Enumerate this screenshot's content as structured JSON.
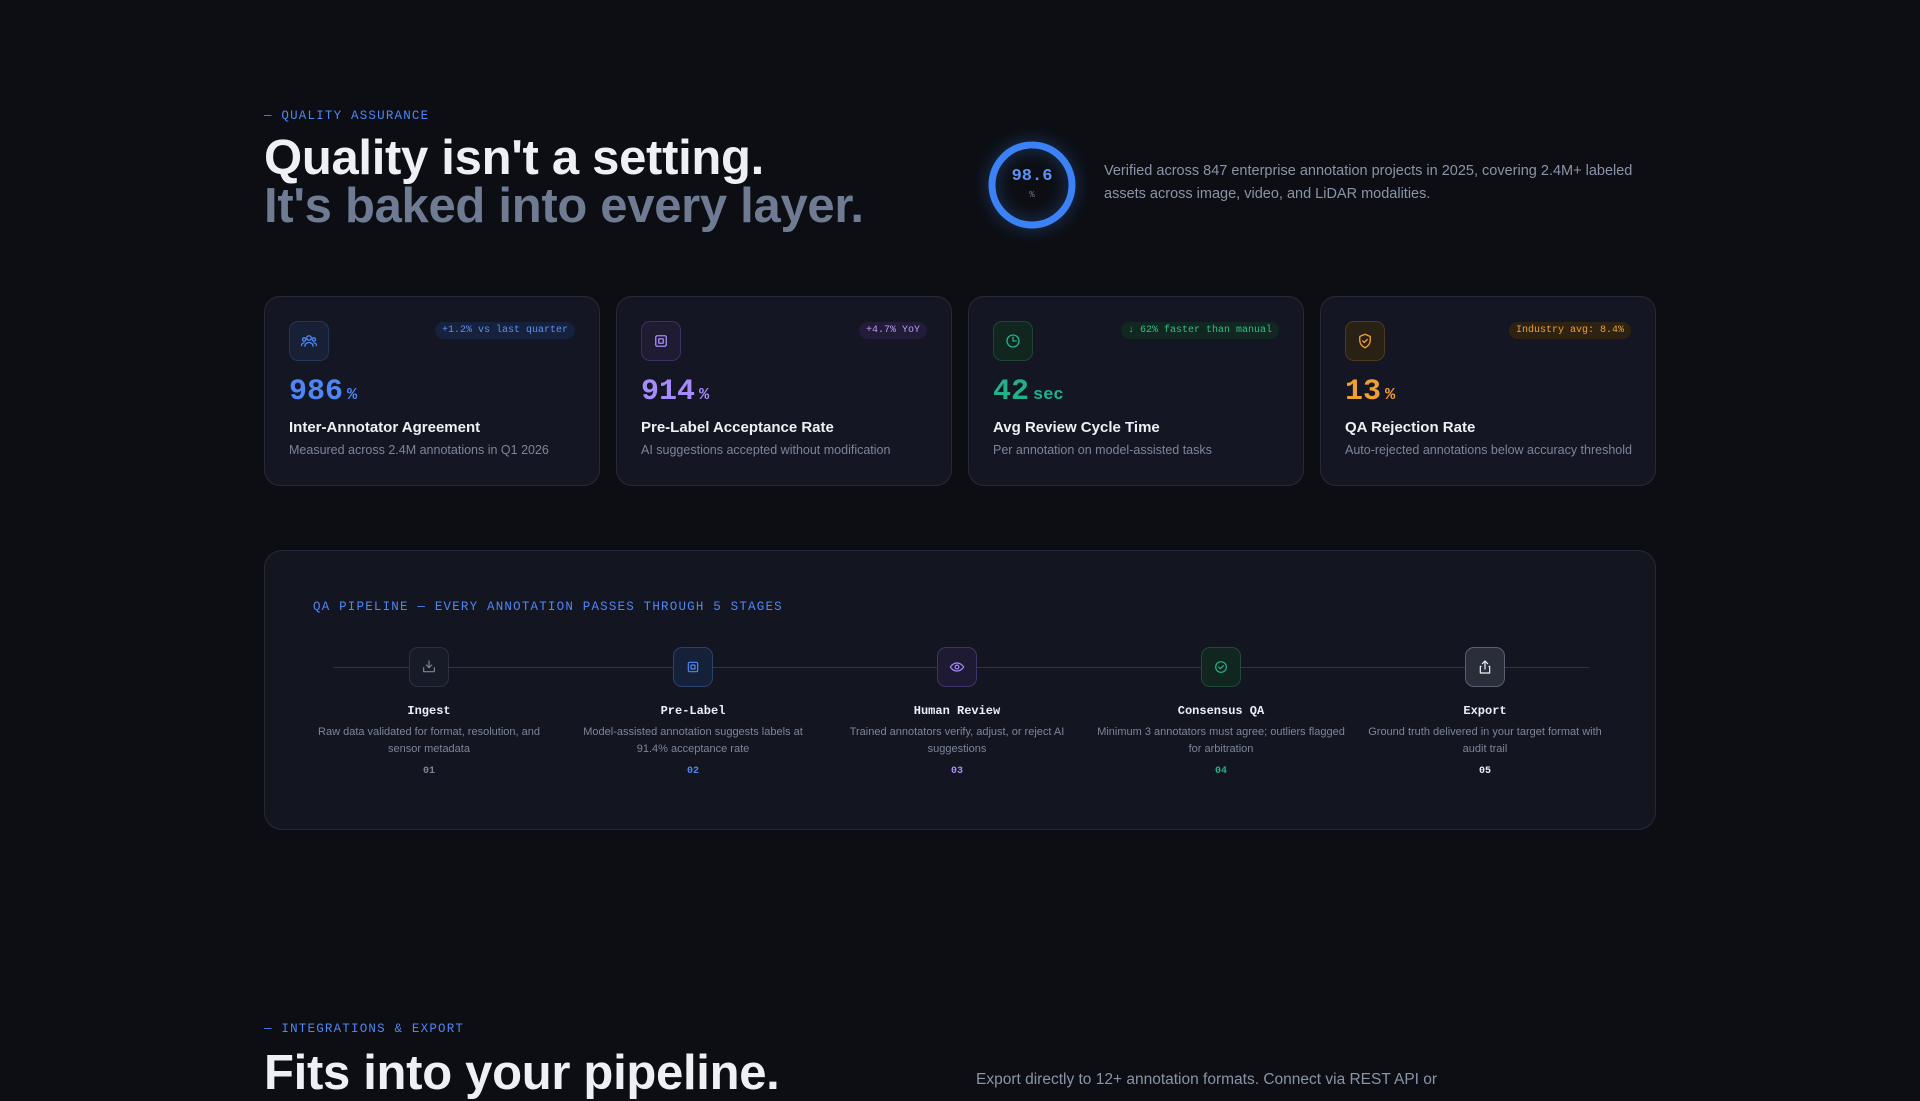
{
  "hero": {
    "eyebrow": "— QUALITY ASSURANCE",
    "title_line1": "Quality isn't a setting.",
    "title_line2": "It's baked into every layer.",
    "gauge_value": "98.6",
    "gauge_unit": "%",
    "gauge_fraction": 0.986,
    "description": "Verified across 847 enterprise annotation projects in 2025, covering 2.4M+ labeled assets across image, video, and LiDAR modalities."
  },
  "metrics": [
    {
      "icon": "users-icon",
      "badge": "+1.2% vs last quarter",
      "value": "986",
      "unit": "%",
      "title": "Inter-Annotator Agreement",
      "subtitle": "Measured across 2.4M annotations in Q1 2026",
      "color": "#4f86f7"
    },
    {
      "icon": "chip-icon",
      "badge": "+4.7% YoY",
      "value": "914",
      "unit": "%",
      "title": "Pre-Label Acceptance Rate",
      "subtitle": "AI suggestions accepted without modification",
      "color": "#a78bfa"
    },
    {
      "icon": "clock-icon",
      "badge": "↓ 62% faster than manual",
      "value": "42",
      "unit": "sec",
      "title": "Avg Review Cycle Time",
      "subtitle": "Per annotation on model-assisted tasks",
      "color": "#22b08a"
    },
    {
      "icon": "shield-check-icon",
      "badge": "Industry avg: 8.4%",
      "value": "13",
      "unit": "%",
      "title": "QA Rejection Rate",
      "subtitle": "Auto-rejected annotations below accuracy threshold",
      "color": "#f0a030"
    }
  ],
  "pipeline": {
    "eyebrow": "QA PIPELINE — EVERY ANNOTATION PASSES THROUGH 5 STAGES",
    "stages": [
      {
        "icon": "ingest-icon",
        "name": "Ingest",
        "desc": "Raw data validated for format, resolution, and sensor metadata",
        "num": "01",
        "color": "#7c8598"
      },
      {
        "icon": "chip-icon",
        "name": "Pre-Label",
        "desc": "Model-assisted annotation suggests labels at 91.4% acceptance rate",
        "num": "02",
        "color": "#4f86f7"
      },
      {
        "icon": "eye-icon",
        "name": "Human Review",
        "desc": "Trained annotators verify, adjust, or reject AI suggestions",
        "num": "03",
        "color": "#a78bfa"
      },
      {
        "icon": "check-circle-icon",
        "name": "Consensus QA",
        "desc": "Minimum 3 annotators must agree; outliers flagged for arbitration",
        "num": "04",
        "color": "#22b08a"
      },
      {
        "icon": "export-icon",
        "name": "Export",
        "desc": "Ground truth delivered in your target format with audit trail",
        "num": "05",
        "color": "#eef0f5"
      }
    ]
  },
  "integrations": {
    "eyebrow": "— INTEGRATIONS & EXPORT",
    "title": "Fits into your pipeline.",
    "description": "Export directly to 12+ annotation formats. Connect via REST API or"
  }
}
